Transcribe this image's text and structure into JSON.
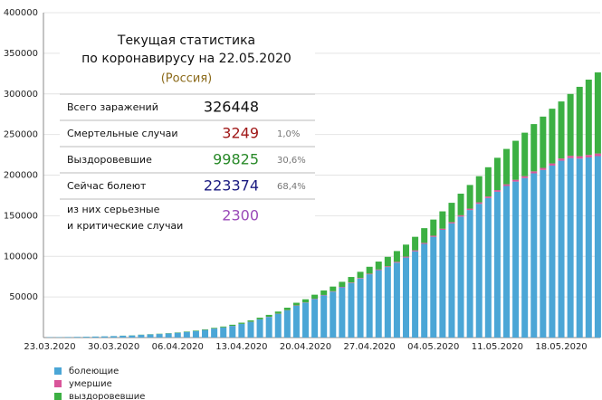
{
  "chart_data": {
    "type": "stacked_bar",
    "categories": [
      "23.03.2020",
      null,
      null,
      null,
      null,
      null,
      null,
      "30.03.2020",
      null,
      null,
      null,
      null,
      null,
      null,
      "06.04.2020",
      null,
      null,
      null,
      null,
      null,
      null,
      "13.04.2020",
      null,
      null,
      null,
      null,
      null,
      null,
      "20.04.2020",
      null,
      null,
      null,
      null,
      null,
      null,
      "27.04.2020",
      null,
      null,
      null,
      null,
      null,
      null,
      "04.05.2020",
      null,
      null,
      null,
      null,
      null,
      null,
      "11.05.2020",
      null,
      null,
      null,
      null,
      null,
      null,
      "18.05.2020",
      null,
      null,
      null,
      null
    ],
    "series": [
      {
        "name": "болеющие",
        "color": "#4ba6d6",
        "values": [
          421,
          472,
          628,
          799,
          988,
          1211,
          1462,
          1761,
          2199,
          2563,
          3283,
          3834,
          4355,
          4989,
          5890,
          6945,
          8029,
          9357,
          11028,
          12433,
          14349,
          16710,
          19238,
          22306,
          25402,
          29145,
          33423,
          39201,
          42843,
          47416,
          51918,
          56483,
          61794,
          67140,
          72638,
          77897,
          82954,
          86808,
          92205,
          98502,
          106193,
          115312,
          124047,
          132592,
          140589,
          148927,
          156991,
          164677,
          171773,
          179534,
          186615,
          192056,
          196410,
          202199,
          206340,
          211748,
          217747,
          220974,
          220341,
          221774,
          223374
        ]
      },
      {
        "name": "умершие",
        "color": "#d9559a",
        "values": [
          1,
          1,
          1,
          3,
          3,
          4,
          8,
          9,
          17,
          24,
          30,
          34,
          43,
          45,
          47,
          58,
          63,
          76,
          94,
          106,
          130,
          148,
          170,
          198,
          232,
          273,
          313,
          361,
          405,
          456,
          513,
          555,
          615,
          681,
          747,
          794,
          867,
          972,
          1073,
          1169,
          1222,
          1280,
          1356,
          1451,
          1537,
          1625,
          1723,
          1827,
          1915,
          2009,
          2116,
          2212,
          2305,
          2418,
          2537,
          2631,
          2722,
          2837,
          2972,
          3099,
          3249
        ]
      },
      {
        "name": "выздоровевшие",
        "color": "#3cb043",
        "values": [
          16,
          22,
          29,
          38,
          45,
          49,
          64,
          66,
          121,
          190,
          235,
          281,
          333,
          355,
          406,
          494,
          580,
          698,
          795,
          1045,
          1291,
          1470,
          1694,
          1986,
          2304,
          2590,
          3057,
          3291,
          3873,
          4891,
          5568,
          5735,
          6213,
          6767,
          7564,
          8456,
          9737,
          11619,
          13220,
          14760,
          16639,
          18095,
          19865,
          21327,
          23803,
          26608,
          29145,
          32172,
          36000,
          39801,
          43512,
          48003,
          53530,
          58226,
          63166,
          67373,
          70209,
          76130,
          85392,
          92681,
          99825
        ]
      }
    ],
    "ylim": [
      0,
      400000
    ],
    "yticks": [
      50000,
      100000,
      150000,
      200000,
      250000,
      300000,
      350000,
      400000
    ],
    "grid": true
  },
  "panel": {
    "title": [
      "Текущая статистика",
      "по коронавирусу на 22.05.2020"
    ],
    "country": "(Россия)",
    "rows": [
      {
        "label": [
          "Всего заражений"
        ],
        "value": "326448",
        "color": "#111111"
      },
      {
        "label": [
          "Смертельные случаи"
        ],
        "value": "3249",
        "share": "1,0%",
        "color": "#a01818"
      },
      {
        "label": [
          "Выздоровевшие"
        ],
        "value": "99825",
        "share": "30,6%",
        "color": "#2a8a2a"
      },
      {
        "label": [
          "Сейчас болеют"
        ],
        "value": "223374",
        "share": "68,4%",
        "color": "#1a1a80"
      },
      {
        "label": [
          "из них серьезные",
          "и критические случаи"
        ],
        "value": "2300",
        "color": "#9a4ab8"
      }
    ]
  }
}
